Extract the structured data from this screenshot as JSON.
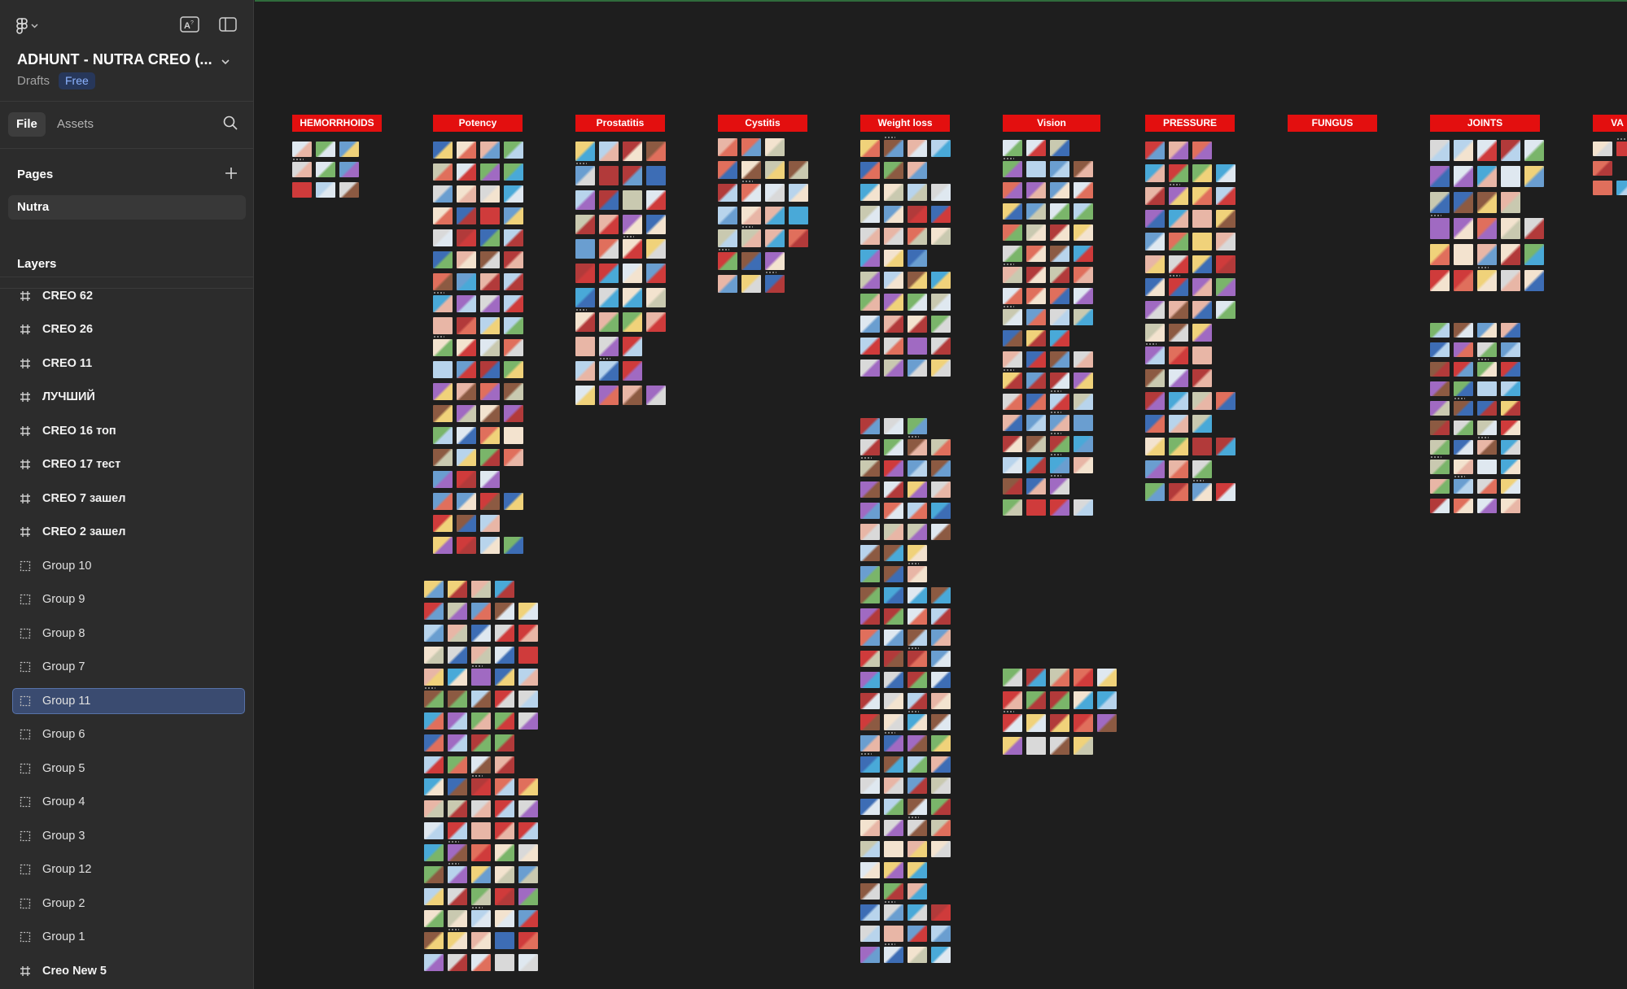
{
  "header": {
    "file_name": "ADHUNT - NUTRA CREO (...",
    "location": "Drafts",
    "plan_badge": "Free"
  },
  "tabs": {
    "file": "File",
    "assets": "Assets"
  },
  "pages": {
    "title": "Pages",
    "items": [
      "Nutra"
    ]
  },
  "layers": {
    "title": "Layers",
    "items": [
      {
        "label": "CREO 62",
        "kind": "frame"
      },
      {
        "label": "CREO 26",
        "kind": "frame"
      },
      {
        "label": "CREO 11",
        "kind": "frame"
      },
      {
        "label": "ЛУЧШИЙ",
        "kind": "frame"
      },
      {
        "label": "CREO 16 топ",
        "kind": "frame"
      },
      {
        "label": "CREO 17 тест",
        "kind": "frame"
      },
      {
        "label": "CREO 7 зашел",
        "kind": "frame"
      },
      {
        "label": "CREO 2 зашел",
        "kind": "frame"
      },
      {
        "label": "Group 10",
        "kind": "group"
      },
      {
        "label": "Group 9",
        "kind": "group"
      },
      {
        "label": "Group 8",
        "kind": "group"
      },
      {
        "label": "Group 7",
        "kind": "group"
      },
      {
        "label": "Group 11",
        "kind": "group",
        "selected": true
      },
      {
        "label": "Group 6",
        "kind": "group"
      },
      {
        "label": "Group 5",
        "kind": "group"
      },
      {
        "label": "Group 4",
        "kind": "group"
      },
      {
        "label": "Group 3",
        "kind": "group"
      },
      {
        "label": "Group 12",
        "kind": "group"
      },
      {
        "label": "Group 2",
        "kind": "group"
      },
      {
        "label": "Group 1",
        "kind": "group"
      },
      {
        "label": "Creo New 5",
        "kind": "frame"
      }
    ]
  },
  "canvas": {
    "sections": [
      "HEMORRHOIDS",
      "Potency",
      "Prostatitis",
      "Cystitis",
      "Weight loss",
      "Vision",
      "PRESSURE",
      "FUNGUS",
      "JOINTS",
      "VA"
    ]
  },
  "colors": {
    "section_label_bg": "#e30f0f",
    "selection": "#3a4b70",
    "badge_bg": "#27375a",
    "badge_text": "#8cb3ff"
  }
}
